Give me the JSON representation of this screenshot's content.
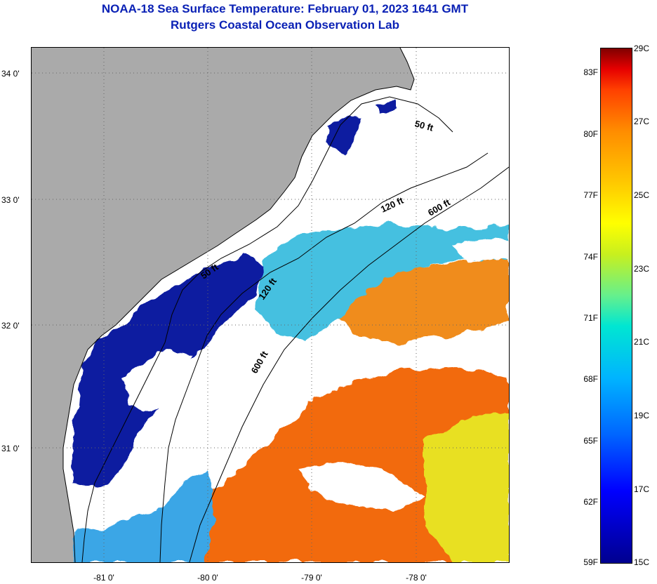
{
  "title": {
    "line1": "NOAA-18 Sea Surface Temperature:  February 01, 2023 1641 GMT",
    "line2": "Rutgers Coastal Ocean Observation Lab"
  },
  "map": {
    "x_axis_labels": [
      "-81 0'",
      "-80 0'",
      "-79 0'",
      "-78 0'"
    ],
    "y_axis_labels": [
      "34 0'",
      "33 0'",
      "32 0'",
      "31 0'"
    ],
    "contour_labels": [
      "50 ft",
      "120 ft",
      "600 ft",
      "50 ft",
      "120 ft",
      "600 ft"
    ],
    "colors": {
      "land": "#aaaaaa",
      "cloud": "#ffffff",
      "cold": "#0a1a9e",
      "mid": "#3ab8e6",
      "warm": "#f07010",
      "yellow": "#e6e619"
    }
  },
  "colorbar": {
    "fahrenheit": [
      "83F",
      "80F",
      "77F",
      "74F",
      "71F",
      "68F",
      "65F",
      "62F",
      "59F"
    ],
    "celsius": [
      "29C",
      "27C",
      "25C",
      "23C",
      "21C",
      "19C",
      "17C",
      "15C"
    ]
  }
}
